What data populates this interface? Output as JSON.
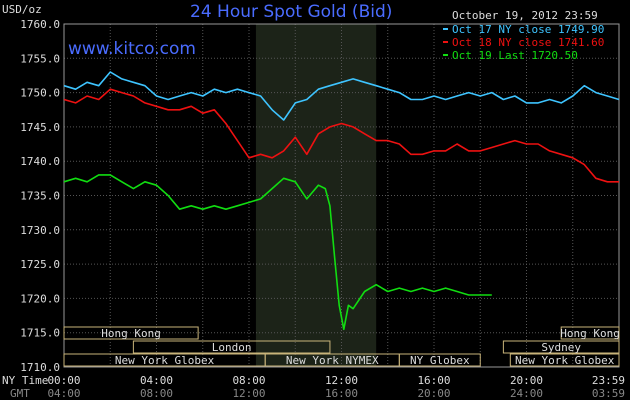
{
  "chart_data": {
    "type": "line",
    "title": "24 Hour Spot Gold (Bid)",
    "brand": "www.kitco.com",
    "date_label": "October 19, 2012 23:59",
    "ylabel": "USD/oz",
    "ylim": [
      1710,
      1760
    ],
    "y_ticks": [
      "1760.0",
      "1755.0",
      "1750.0",
      "1745.0",
      "1740.0",
      "1735.0",
      "1730.0",
      "1725.0",
      "1720.0",
      "1715.0",
      "1710.0"
    ],
    "y_tick_values": [
      1760,
      1755,
      1750,
      1745,
      1740,
      1735,
      1730,
      1725,
      1720,
      1715,
      1710
    ],
    "xlim": [
      0,
      24
    ],
    "x_ticks_ny": [
      "00:00",
      "04:00",
      "08:00",
      "12:00",
      "16:00",
      "20:00",
      "23:59"
    ],
    "x_ticks_gmt": [
      "04:00",
      "08:00",
      "12:00",
      "16:00",
      "20:00",
      "24:00",
      "03:59"
    ],
    "x_tick_hours": [
      0,
      4,
      8,
      12,
      16,
      20,
      23.98
    ],
    "x_row_labels": {
      "ny": "NY Time",
      "gmt": "GMT"
    },
    "highlight_hours": [
      8.3,
      13.5
    ],
    "legend": [
      "Oct 17 NY close 1749.90",
      "Oct 18 NY close 1741.60",
      "Oct 19 Last 1720.50"
    ],
    "series": [
      {
        "name": "Oct 17",
        "color": "#3ec4ff",
        "x": [
          0,
          0.5,
          1,
          1.5,
          2,
          2.5,
          3,
          3.5,
          4,
          4.5,
          5,
          5.5,
          6,
          6.5,
          7,
          7.5,
          8,
          8.5,
          9,
          9.5,
          10,
          10.5,
          11,
          11.5,
          12,
          12.5,
          13,
          13.5,
          14,
          14.5,
          15,
          15.5,
          16,
          16.5,
          17,
          17.5,
          18,
          18.5,
          19,
          19.5,
          20,
          20.5,
          21,
          21.5,
          22,
          22.5,
          23,
          23.5,
          24
        ],
        "values": [
          1751.0,
          1750.5,
          1751.5,
          1751.0,
          1753.0,
          1752.0,
          1751.5,
          1751.0,
          1749.5,
          1749.0,
          1749.5,
          1750.0,
          1749.5,
          1750.5,
          1750.0,
          1750.5,
          1750.0,
          1749.5,
          1747.5,
          1746.0,
          1748.5,
          1749.0,
          1750.5,
          1751.0,
          1751.5,
          1752.0,
          1751.5,
          1751.0,
          1750.5,
          1750.0,
          1749.0,
          1749.0,
          1749.5,
          1749.0,
          1749.5,
          1750.0,
          1749.5,
          1750.0,
          1749.0,
          1749.5,
          1748.5,
          1748.5,
          1749.0,
          1748.5,
          1749.5,
          1751.0,
          1750.0,
          1749.5,
          1749.0
        ]
      },
      {
        "name": "Oct 18",
        "color": "#ee1111",
        "x": [
          0,
          0.5,
          1,
          1.5,
          2,
          2.5,
          3,
          3.5,
          4,
          4.5,
          5,
          5.5,
          6,
          6.5,
          7,
          7.5,
          8,
          8.5,
          9,
          9.5,
          10,
          10.5,
          11,
          11.5,
          12,
          12.5,
          13,
          13.5,
          14,
          14.5,
          15,
          15.5,
          16,
          16.5,
          17,
          17.5,
          18,
          18.5,
          19,
          19.5,
          20,
          20.5,
          21,
          21.5,
          22,
          22.5,
          23,
          23.5,
          24
        ],
        "values": [
          1749.0,
          1748.5,
          1749.5,
          1749.0,
          1750.5,
          1750.0,
          1749.5,
          1748.5,
          1748.0,
          1747.5,
          1747.5,
          1748.0,
          1747.0,
          1747.5,
          1745.5,
          1743.0,
          1740.5,
          1741.0,
          1740.5,
          1741.5,
          1743.5,
          1741.0,
          1744.0,
          1745.0,
          1745.5,
          1745.0,
          1744.0,
          1743.0,
          1743.0,
          1742.5,
          1741.0,
          1741.0,
          1741.5,
          1741.5,
          1742.5,
          1741.5,
          1741.5,
          1742.0,
          1742.5,
          1743.0,
          1742.5,
          1742.5,
          1741.5,
          1741.0,
          1740.5,
          1739.5,
          1737.5,
          1737.0,
          1737.0
        ]
      },
      {
        "name": "Oct 19",
        "color": "#11dd11",
        "x": [
          0,
          0.5,
          1,
          1.5,
          2,
          2.5,
          3,
          3.5,
          4,
          4.5,
          5,
          5.5,
          6,
          6.5,
          7,
          7.5,
          8,
          8.5,
          9,
          9.5,
          10,
          10.5,
          11,
          11.3,
          11.5,
          11.7,
          11.9,
          12.1,
          12.3,
          12.5,
          13,
          13.5,
          14,
          14.5,
          15,
          15.5,
          16,
          16.5,
          17,
          17.5,
          18,
          18.5
        ],
        "values": [
          1737.0,
          1737.5,
          1737.0,
          1738.0,
          1738.0,
          1737.0,
          1736.0,
          1737.0,
          1736.5,
          1735.0,
          1733.0,
          1733.5,
          1733.0,
          1733.5,
          1733.0,
          1733.5,
          1734.0,
          1734.5,
          1736.0,
          1737.5,
          1737.0,
          1734.5,
          1736.5,
          1736.0,
          1733.5,
          1726.0,
          1719.0,
          1715.5,
          1719.0,
          1718.5,
          1721.0,
          1722.0,
          1721.0,
          1721.5,
          1721.0,
          1721.5,
          1721.0,
          1721.5,
          1721.0,
          1720.5,
          1720.5,
          1720.5
        ]
      }
    ],
    "sessions": [
      {
        "name": "Hong Kong",
        "row": 0,
        "x0": 0,
        "x1": 5.8
      },
      {
        "name": "Hong Kong",
        "row": 0,
        "x0": 21.5,
        "x1": 24
      },
      {
        "name": "London",
        "row": 1,
        "x0": 3.0,
        "x1": 11.5
      },
      {
        "name": "Sydney",
        "row": 1,
        "x0": 19.0,
        "x1": 24
      },
      {
        "name": "New York Globex",
        "row": 2,
        "x0": 0,
        "x1": 8.7
      },
      {
        "name": "New York NYMEX",
        "row": 2,
        "x0": 8.7,
        "x1": 14.5
      },
      {
        "name": "NY Globex",
        "row": 2,
        "x0": 14.5,
        "x1": 18.0
      },
      {
        "name": "New York Globex",
        "row": 2,
        "x0": 19.3,
        "x1": 24
      }
    ]
  }
}
